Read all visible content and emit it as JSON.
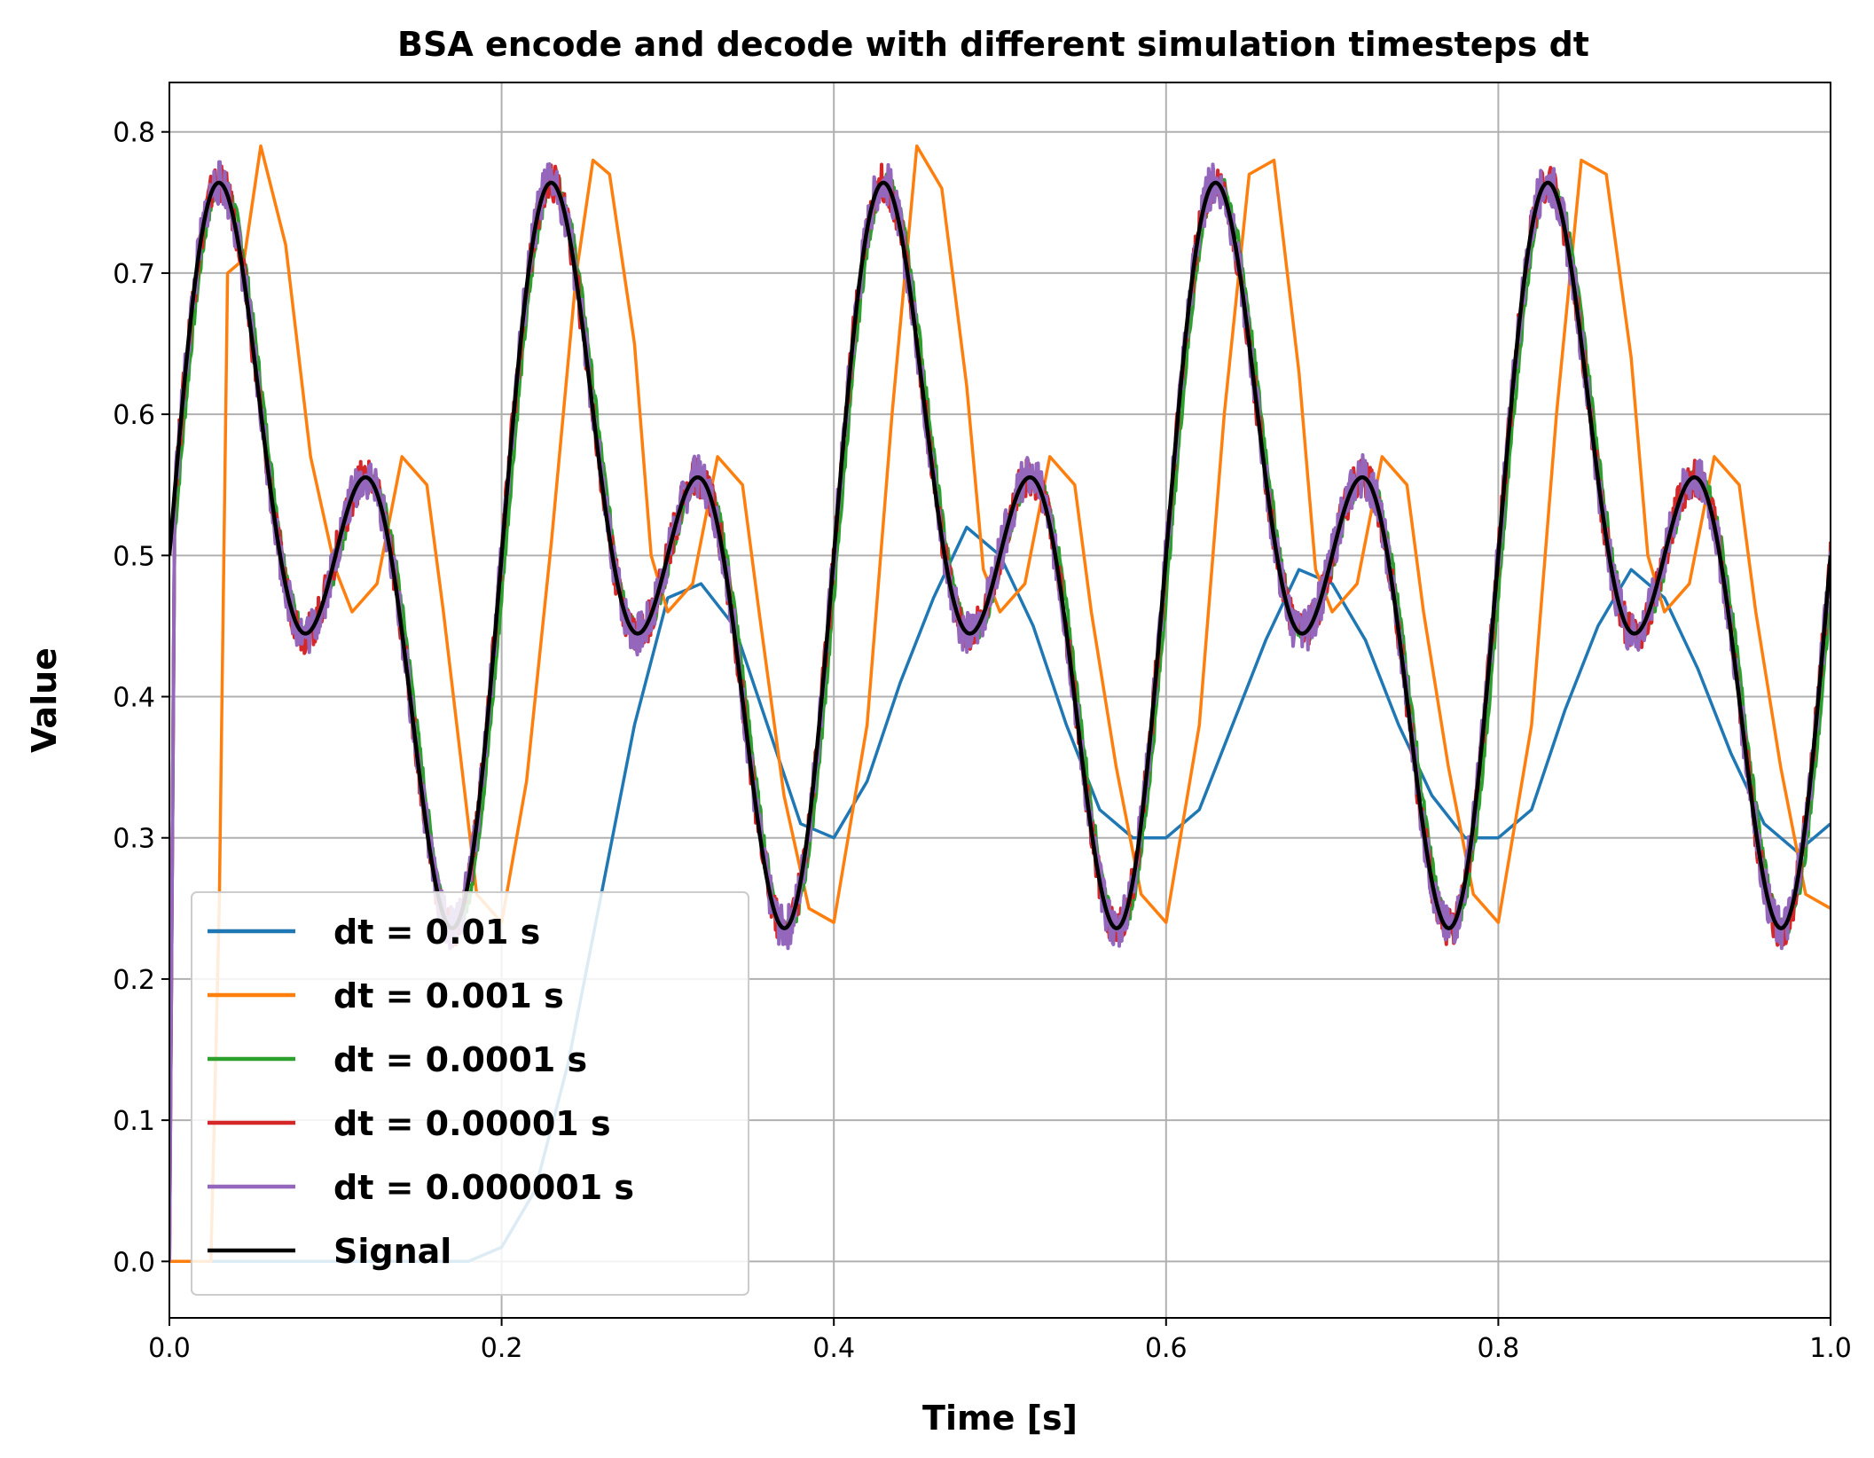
{
  "chart_data": {
    "type": "line",
    "title": "BSA encode and decode with different simulation timesteps dt",
    "xlabel": "Time [s]",
    "ylabel": "Value",
    "xlim": [
      0.0,
      1.0
    ],
    "ylim": [
      -0.04,
      0.835
    ],
    "xticks": [
      0.0,
      0.2,
      0.4,
      0.6,
      0.8,
      1.0
    ],
    "xtick_labels": [
      "0.0",
      "0.2",
      "0.4",
      "0.6",
      "0.8",
      "1.0"
    ],
    "yticks": [
      0.0,
      0.1,
      0.2,
      0.3,
      0.4,
      0.5,
      0.6,
      0.7,
      0.8
    ],
    "ytick_labels": [
      "0.0",
      "0.1",
      "0.2",
      "0.3",
      "0.4",
      "0.5",
      "0.6",
      "0.7",
      "0.8"
    ],
    "grid": true,
    "legend_position": "lower-left",
    "series": [
      {
        "name": "dt = 0.01 s",
        "color": "#1f77b4",
        "x": [
          0.0,
          0.02,
          0.04,
          0.06,
          0.08,
          0.1,
          0.12,
          0.14,
          0.16,
          0.18,
          0.2,
          0.22,
          0.24,
          0.26,
          0.28,
          0.3,
          0.32,
          0.34,
          0.36,
          0.38,
          0.4,
          0.42,
          0.44,
          0.46,
          0.48,
          0.5,
          0.52,
          0.54,
          0.56,
          0.58,
          0.6,
          0.62,
          0.64,
          0.66,
          0.68,
          0.7,
          0.72,
          0.74,
          0.76,
          0.78,
          0.8,
          0.82,
          0.84,
          0.86,
          0.88,
          0.9,
          0.92,
          0.94,
          0.96,
          0.98,
          1.0
        ],
        "y": [
          0.0,
          0.0,
          0.0,
          0.0,
          0.0,
          0.0,
          0.0,
          0.0,
          0.0,
          0.0,
          0.01,
          0.05,
          0.14,
          0.26,
          0.38,
          0.47,
          0.48,
          0.45,
          0.38,
          0.31,
          0.3,
          0.34,
          0.41,
          0.47,
          0.52,
          0.5,
          0.45,
          0.38,
          0.32,
          0.3,
          0.3,
          0.32,
          0.38,
          0.44,
          0.49,
          0.48,
          0.44,
          0.38,
          0.33,
          0.3,
          0.3,
          0.32,
          0.39,
          0.45,
          0.49,
          0.47,
          0.42,
          0.36,
          0.31,
          0.29,
          0.31
        ]
      },
      {
        "name": "dt = 0.001 s",
        "color": "#ff7f0e",
        "x": [
          0.0,
          0.025,
          0.03,
          0.035,
          0.045,
          0.055,
          0.07,
          0.085,
          0.1,
          0.11,
          0.125,
          0.14,
          0.155,
          0.165,
          0.175,
          0.185,
          0.2,
          0.215,
          0.23,
          0.245,
          0.255,
          0.265,
          0.28,
          0.29,
          0.3,
          0.315,
          0.33,
          0.345,
          0.355,
          0.37,
          0.385,
          0.4,
          0.42,
          0.435,
          0.45,
          0.465,
          0.48,
          0.49,
          0.5,
          0.515,
          0.53,
          0.545,
          0.555,
          0.57,
          0.585,
          0.6,
          0.62,
          0.635,
          0.65,
          0.665,
          0.68,
          0.69,
          0.7,
          0.715,
          0.73,
          0.745,
          0.755,
          0.77,
          0.785,
          0.8,
          0.82,
          0.835,
          0.85,
          0.865,
          0.88,
          0.89,
          0.9,
          0.915,
          0.93,
          0.945,
          0.955,
          0.97,
          0.985,
          1.0
        ],
        "y": [
          0.0,
          0.0,
          0.25,
          0.7,
          0.71,
          0.79,
          0.72,
          0.57,
          0.49,
          0.46,
          0.48,
          0.57,
          0.55,
          0.46,
          0.36,
          0.26,
          0.24,
          0.34,
          0.51,
          0.7,
          0.78,
          0.77,
          0.65,
          0.5,
          0.46,
          0.48,
          0.57,
          0.55,
          0.46,
          0.33,
          0.25,
          0.24,
          0.38,
          0.6,
          0.79,
          0.76,
          0.62,
          0.49,
          0.46,
          0.48,
          0.57,
          0.55,
          0.46,
          0.35,
          0.26,
          0.24,
          0.38,
          0.6,
          0.77,
          0.78,
          0.63,
          0.49,
          0.46,
          0.48,
          0.57,
          0.55,
          0.46,
          0.35,
          0.26,
          0.24,
          0.38,
          0.6,
          0.78,
          0.77,
          0.64,
          0.5,
          0.46,
          0.48,
          0.57,
          0.55,
          0.46,
          0.35,
          0.26,
          0.25
        ]
      }
    ],
    "signal": {
      "name": "Signal",
      "color": "#000000",
      "offset": 0.5,
      "amp1": 0.15,
      "freq1": 5,
      "amp2": 0.15,
      "freq2": 10
    },
    "traced_series": [
      {
        "name": "dt = 0.0001 s",
        "color": "#2ca02c",
        "lag": 0.002,
        "noise": 0.006
      },
      {
        "name": "dt = 0.00001 s",
        "color": "#d62728",
        "lag": 0.0,
        "noise": 0.014
      },
      {
        "name": "dt = 0.000001 s",
        "color": "#9467bd",
        "lag": 0.0,
        "noise": 0.016
      }
    ],
    "legend_entries": [
      {
        "label": "dt = 0.01 s",
        "color": "#1f77b4"
      },
      {
        "label": "dt = 0.001 s",
        "color": "#ff7f0e"
      },
      {
        "label": "dt = 0.0001 s",
        "color": "#2ca02c"
      },
      {
        "label": "dt = 0.00001 s",
        "color": "#d62728"
      },
      {
        "label": "dt = 0.000001 s",
        "color": "#9467bd"
      },
      {
        "label": "Signal",
        "color": "#000000"
      }
    ]
  }
}
